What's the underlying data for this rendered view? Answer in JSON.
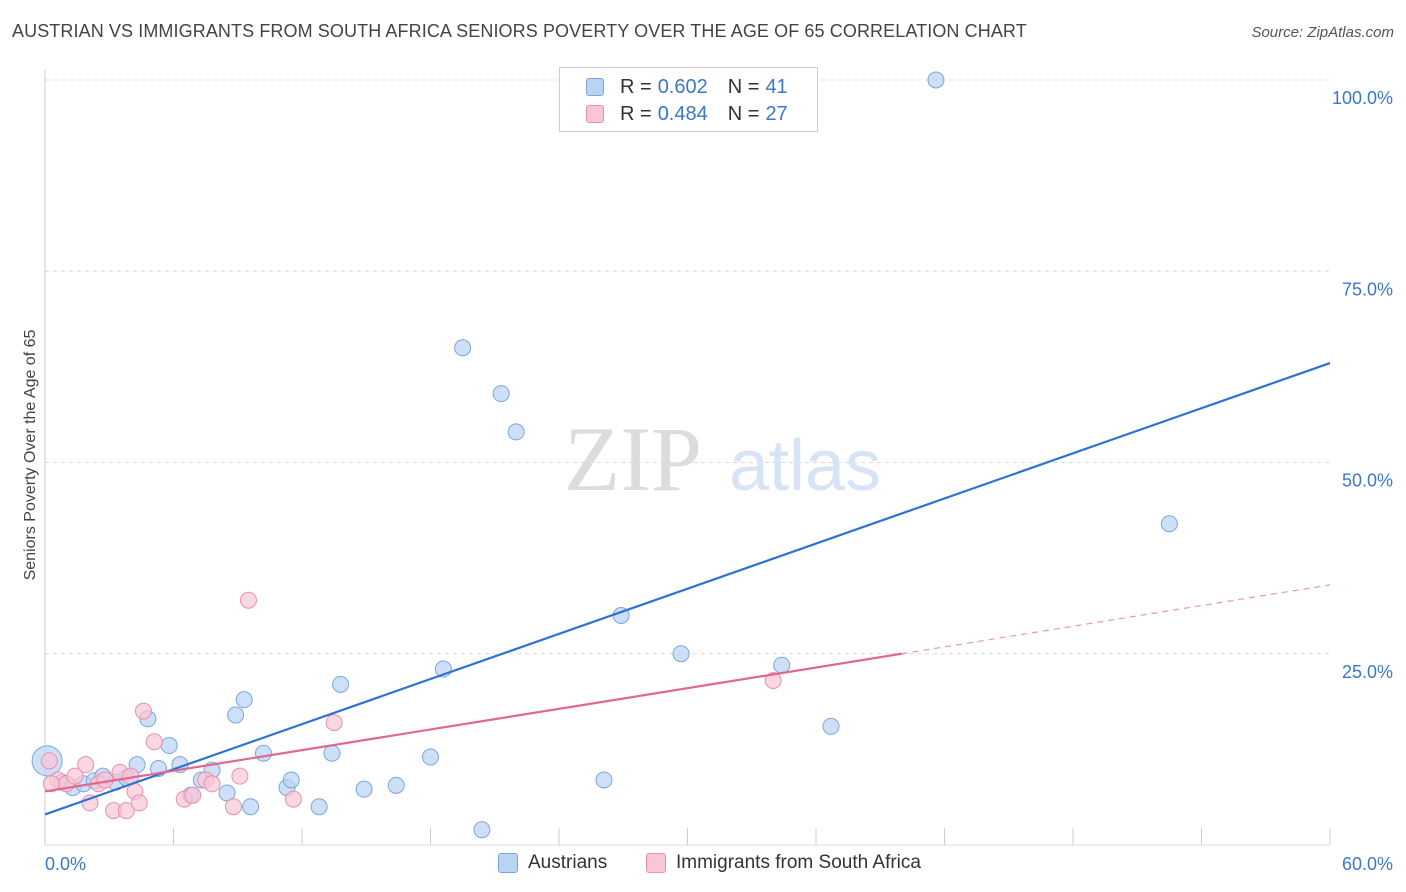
{
  "title": "AUSTRIAN VS IMMIGRANTS FROM SOUTH AFRICA SENIORS POVERTY OVER THE AGE OF 65 CORRELATION CHART",
  "source": "Source: ZipAtlas.com",
  "watermark": {
    "zip": "ZIP",
    "atlas": "atlas"
  },
  "colors": {
    "blue_fill": "#b9d3f3",
    "blue_stroke": "#7aa6db",
    "blue_line": "#2f72d0",
    "pink_fill": "#f9c6d6",
    "pink_stroke": "#ea8fac",
    "pink_line": "#e0688f",
    "tick_text": "#3a78c8",
    "grid": "#d9d9d9"
  },
  "legend": {
    "rows": [
      {
        "series": "Austrians",
        "r_label": "R =",
        "r_value": "0.602",
        "n_label": "N =",
        "n_value": "41"
      },
      {
        "series": "Immigrants from South Africa",
        "r_label": "R =",
        "r_value": "0.484",
        "n_label": "N =",
        "n_value": "27"
      }
    ]
  },
  "bottom_legend": [
    "Austrians",
    "Immigrants from South Africa"
  ],
  "chart_data": {
    "type": "scatter",
    "title": "AUSTRIAN VS IMMIGRANTS FROM SOUTH AFRICA SENIORS POVERTY OVER THE AGE OF 65 CORRELATION CHART",
    "xlabel": "",
    "ylabel": "Seniors Poverty Over the Age of 65",
    "xlim": [
      0,
      60
    ],
    "ylim": [
      0,
      100
    ],
    "x_tick_labels": [
      "0.0%",
      "60.0%"
    ],
    "y_ticks": [
      25,
      50,
      75,
      100
    ],
    "y_tick_labels": [
      "25.0%",
      "50.0%",
      "75.0%",
      "100.0%"
    ],
    "grid": true,
    "series": [
      {
        "name": "Austrians",
        "color": "#b9d3f3",
        "points": [
          {
            "x": 0.1,
            "y": 11.0,
            "big": true
          },
          {
            "x": 0.8,
            "y": 8.2
          },
          {
            "x": 1.3,
            "y": 7.5
          },
          {
            "x": 1.8,
            "y": 8.0
          },
          {
            "x": 2.3,
            "y": 8.4
          },
          {
            "x": 2.7,
            "y": 9.0
          },
          {
            "x": 3.3,
            "y": 8.2
          },
          {
            "x": 3.8,
            "y": 8.8
          },
          {
            "x": 4.3,
            "y": 10.5
          },
          {
            "x": 4.8,
            "y": 16.5
          },
          {
            "x": 5.3,
            "y": 10.0
          },
          {
            "x": 5.8,
            "y": 13.0
          },
          {
            "x": 6.3,
            "y": 10.5
          },
          {
            "x": 6.8,
            "y": 6.5
          },
          {
            "x": 7.3,
            "y": 8.5
          },
          {
            "x": 7.8,
            "y": 9.8
          },
          {
            "x": 8.5,
            "y": 6.8
          },
          {
            "x": 8.9,
            "y": 17.0
          },
          {
            "x": 9.3,
            "y": 19.0
          },
          {
            "x": 9.6,
            "y": 5.0
          },
          {
            "x": 10.2,
            "y": 12.0
          },
          {
            "x": 11.3,
            "y": 7.5
          },
          {
            "x": 11.5,
            "y": 8.5
          },
          {
            "x": 12.8,
            "y": 5.0
          },
          {
            "x": 13.4,
            "y": 12.0
          },
          {
            "x": 13.8,
            "y": 21.0
          },
          {
            "x": 14.9,
            "y": 7.3
          },
          {
            "x": 16.4,
            "y": 7.8
          },
          {
            "x": 18.0,
            "y": 11.5
          },
          {
            "x": 18.6,
            "y": 23.0
          },
          {
            "x": 19.5,
            "y": 65.0
          },
          {
            "x": 20.4,
            "y": 2.0
          },
          {
            "x": 21.3,
            "y": 59.0
          },
          {
            "x": 22.0,
            "y": 54.0
          },
          {
            "x": 26.1,
            "y": 8.5
          },
          {
            "x": 26.9,
            "y": 30.0
          },
          {
            "x": 29.7,
            "y": 25.0
          },
          {
            "x": 34.4,
            "y": 23.5
          },
          {
            "x": 36.7,
            "y": 15.5
          },
          {
            "x": 41.6,
            "y": 100.0
          },
          {
            "x": 52.5,
            "y": 42.0
          }
        ],
        "trend": {
          "x0": 0,
          "y0": 4.0,
          "x1": 60,
          "y1": 63.0
        }
      },
      {
        "name": "Immigrants from South Africa",
        "color": "#f9c6d6",
        "points": [
          {
            "x": 0.2,
            "y": 11.0
          },
          {
            "x": 0.6,
            "y": 8.5
          },
          {
            "x": 1.0,
            "y": 8.0
          },
          {
            "x": 1.4,
            "y": 9.0
          },
          {
            "x": 1.9,
            "y": 10.5
          },
          {
            "x": 2.1,
            "y": 5.5
          },
          {
            "x": 2.5,
            "y": 8.0
          },
          {
            "x": 2.8,
            "y": 8.5
          },
          {
            "x": 3.2,
            "y": 4.5
          },
          {
            "x": 3.8,
            "y": 4.5
          },
          {
            "x": 3.5,
            "y": 9.5
          },
          {
            "x": 4.0,
            "y": 9.0
          },
          {
            "x": 4.2,
            "y": 7.0
          },
          {
            "x": 4.4,
            "y": 5.5
          },
          {
            "x": 4.6,
            "y": 17.5
          },
          {
            "x": 5.1,
            "y": 13.5
          },
          {
            "x": 6.5,
            "y": 6.0
          },
          {
            "x": 6.9,
            "y": 6.5
          },
          {
            "x": 7.5,
            "y": 8.5
          },
          {
            "x": 7.8,
            "y": 8.0
          },
          {
            "x": 8.8,
            "y": 5.0
          },
          {
            "x": 9.1,
            "y": 9.0
          },
          {
            "x": 9.5,
            "y": 32.0
          },
          {
            "x": 11.6,
            "y": 6.0
          },
          {
            "x": 13.5,
            "y": 16.0
          },
          {
            "x": 34.0,
            "y": 21.5
          },
          {
            "x": 0.3,
            "y": 8.0
          }
        ],
        "trend": {
          "x0": 0,
          "y0": 7.0,
          "x1": 40,
          "y1": 25.0
        },
        "trend_dashed": {
          "x0": 40,
          "y0": 25.0,
          "x1": 60,
          "y1": 34.0
        }
      }
    ]
  }
}
